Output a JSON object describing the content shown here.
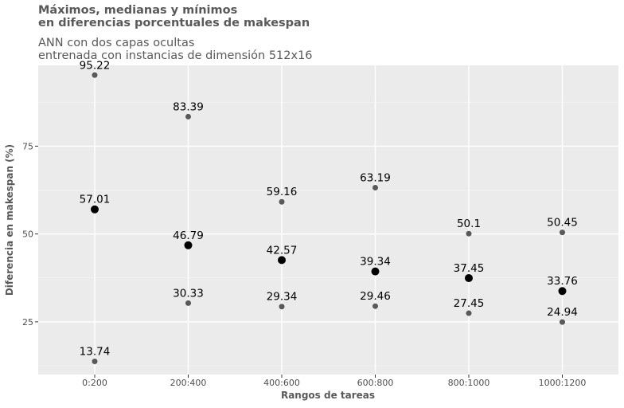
{
  "chart_data": {
    "type": "scatter",
    "title_lines": [
      "Máximos, medianas y mínimos",
      "en diferencias porcentuales de makespan"
    ],
    "subtitle_lines": [
      "ANN con dos capas ocultas",
      "entrenada con instancias de dimensión 512x16"
    ],
    "xlabel": "Rangos de tareas",
    "ylabel": "Diferencia en makespan (%)",
    "categories": [
      "0:200",
      "200:400",
      "400:600",
      "600:800",
      "800:1000",
      "1000:1200"
    ],
    "ylim": [
      10,
      98
    ],
    "yticks": [
      25,
      50,
      75
    ],
    "yticks_labels": [
      "25",
      "50",
      "75"
    ],
    "grid": true,
    "series": [
      {
        "role": "max",
        "color": "#595959",
        "values": [
          95.22,
          83.39,
          59.16,
          63.19,
          50.1,
          50.45
        ],
        "labels": [
          "95.22",
          "83.39",
          "59.16",
          "63.19",
          "50.1",
          "50.45"
        ]
      },
      {
        "role": "median",
        "color": "#000000",
        "values": [
          57.01,
          46.79,
          42.57,
          39.34,
          37.45,
          33.76
        ],
        "labels": [
          "57.01",
          "46.79",
          "42.57",
          "39.34",
          "37.45",
          "33.76"
        ]
      },
      {
        "role": "min",
        "color": "#595959",
        "values": [
          13.74,
          30.33,
          29.34,
          29.46,
          27.45,
          24.94
        ],
        "labels": [
          "13.74",
          "30.33",
          "29.34",
          "29.46",
          "27.45",
          "24.94"
        ]
      }
    ]
  }
}
